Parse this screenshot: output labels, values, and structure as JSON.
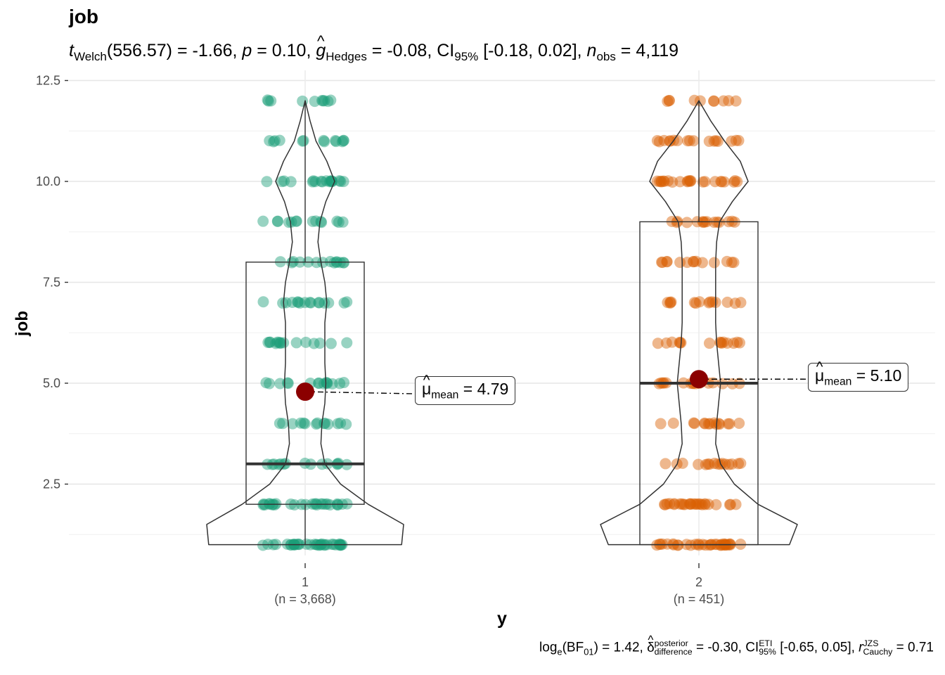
{
  "title": "job",
  "subtitle": {
    "t_symbol": "t",
    "t_sub": "Welch",
    "df": "(556.57)",
    "t_value": "= -1.66, ",
    "p_symbol": "p",
    "p_value": " = 0.10, ",
    "g_symbol": "g",
    "g_sub": "Hedges",
    "g_value": " = -0.08, CI",
    "ci_sub": "95%",
    "ci_value": " [-0.18, 0.02], ",
    "n_symbol": "n",
    "n_sub": "obs",
    "n_value": " = 4,119"
  },
  "caption": {
    "log_prefix": "log",
    "log_sub": "e",
    "bf_text": "(BF",
    "bf_sub": "01",
    "bf_value": ") = 1.42, ",
    "delta_symbol": "δ",
    "delta_sup": "posterior",
    "delta_sub": "difference",
    "delta_value": " = -0.30, CI",
    "ci_sup": "ETI",
    "ci_sub": "95%",
    "ci_value": " [-0.65, 0.05], ",
    "r_symbol": "r",
    "r_sup": "JZS",
    "r_sub": "Cauchy",
    "r_value": " = 0.71"
  },
  "mean_labels": [
    {
      "symbol": "μ",
      "sub": "mean",
      "value": " = 4.79"
    },
    {
      "symbol": "μ",
      "sub": "mean",
      "value": " = 5.10"
    }
  ],
  "chart_data": {
    "type": "violin-box-scatter",
    "xlabel": "y",
    "ylabel": "job",
    "ylim": [
      0.8,
      12.6
    ],
    "yticks": [
      2.5,
      5.0,
      7.5,
      10.0,
      12.5
    ],
    "ytick_labels": [
      "2.5",
      "5.0",
      "7.5",
      "10.0",
      "12.5"
    ],
    "grid": true,
    "groups": [
      {
        "category": "1",
        "n_label": "(n = 3,668)",
        "color": "#1b9e77",
        "box": {
          "min": 1,
          "q1": 2,
          "median": 3,
          "q3": 8,
          "max": 12
        },
        "mean": 4.79,
        "mean_label": "4.79",
        "violin": [
          [
            1,
            0.98
          ],
          [
            1.5,
            1.0
          ],
          [
            2,
            0.64
          ],
          [
            2.5,
            0.36
          ],
          [
            3,
            0.2
          ],
          [
            3.5,
            0.16
          ],
          [
            4,
            0.17
          ],
          [
            4.5,
            0.2
          ],
          [
            5,
            0.21
          ],
          [
            5.5,
            0.2
          ],
          [
            6,
            0.2
          ],
          [
            6.5,
            0.2
          ],
          [
            7,
            0.22
          ],
          [
            7.5,
            0.2
          ],
          [
            8,
            0.16
          ],
          [
            8.5,
            0.13
          ],
          [
            9,
            0.15
          ],
          [
            9.5,
            0.21
          ],
          [
            10,
            0.3
          ],
          [
            10.5,
            0.22
          ],
          [
            11,
            0.11
          ],
          [
            11.5,
            0.05
          ],
          [
            12,
            0.0
          ]
        ],
        "point_levels": [
          1,
          2,
          3,
          4,
          5,
          6,
          7,
          8,
          9,
          10,
          11,
          12
        ]
      },
      {
        "category": "2",
        "n_label": "(n = 451)",
        "color": "#d95f02",
        "box": {
          "min": 1,
          "q1": 1,
          "median": 5,
          "q3": 9,
          "max": 12
        },
        "mean": 5.1,
        "mean_label": "5.10",
        "violin": [
          [
            1,
            0.92
          ],
          [
            1.5,
            1.0
          ],
          [
            2,
            0.6
          ],
          [
            2.5,
            0.36
          ],
          [
            3,
            0.22
          ],
          [
            3.5,
            0.17
          ],
          [
            4,
            0.18
          ],
          [
            4.5,
            0.2
          ],
          [
            5,
            0.22
          ],
          [
            5.5,
            0.2
          ],
          [
            6,
            0.18
          ],
          [
            6.5,
            0.17
          ],
          [
            7,
            0.17
          ],
          [
            7.5,
            0.17
          ],
          [
            8,
            0.17
          ],
          [
            8.5,
            0.18
          ],
          [
            9,
            0.21
          ],
          [
            9.5,
            0.34
          ],
          [
            10,
            0.5
          ],
          [
            10.5,
            0.42
          ],
          [
            11,
            0.26
          ],
          [
            11.5,
            0.12
          ],
          [
            12,
            0.0
          ]
        ],
        "point_levels": [
          1,
          2,
          3,
          4,
          5,
          6,
          7,
          8,
          9,
          10,
          11,
          12
        ]
      }
    ]
  }
}
